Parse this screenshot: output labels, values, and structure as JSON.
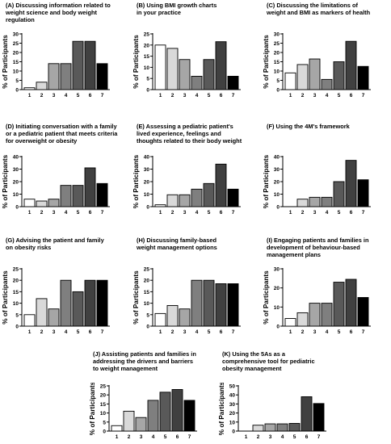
{
  "chart_data": [
    {
      "id": "A",
      "type": "bar",
      "title_lines": [
        "(A) Discussing information related to",
        "weight science and body weight",
        "regulation"
      ],
      "categories": [
        "1",
        "2",
        "3",
        "4",
        "5",
        "6",
        "7"
      ],
      "values": [
        1,
        4,
        14,
        14,
        26,
        26,
        14
      ],
      "ylabel": "% of Participants",
      "yticks": [
        0,
        5,
        10,
        15,
        20,
        25,
        30
      ],
      "ylim": [
        0,
        30
      ]
    },
    {
      "id": "B",
      "type": "bar",
      "title_lines": [
        "(B) Using BMI growth charts",
        "in your practice"
      ],
      "categories": [
        "1",
        "2",
        "3",
        "4",
        "5",
        "6",
        "7"
      ],
      "values": [
        20,
        18.5,
        13.5,
        6,
        13.5,
        21.5,
        6
      ],
      "ylabel": "% of Participants",
      "yticks": [
        0,
        5,
        10,
        15,
        20,
        25
      ],
      "ylim": [
        0,
        25
      ]
    },
    {
      "id": "C",
      "type": "bar",
      "title_lines": [
        "(C) Discussing the limitations of",
        "weight and BMI as markers of health"
      ],
      "categories": [
        "1",
        "2",
        "3",
        "4",
        "5",
        "6",
        "7"
      ],
      "values": [
        9,
        13.5,
        16.5,
        5.5,
        15,
        26,
        12.5
      ],
      "ylabel": "% of Participants",
      "yticks": [
        0,
        5,
        10,
        15,
        20,
        25,
        30
      ],
      "ylim": [
        0,
        30
      ]
    },
    {
      "id": "D",
      "type": "bar",
      "title_lines": [
        "(D) Initiating conversation with a family",
        "or a pediatric patient that meets criteria",
        "for overweight or obesity"
      ],
      "categories": [
        "1",
        "2",
        "3",
        "4",
        "5",
        "6",
        "7"
      ],
      "values": [
        6,
        4.5,
        6,
        17,
        17,
        31,
        18.5
      ],
      "ylabel": "% of Participants",
      "yticks": [
        0,
        10,
        20,
        30,
        40
      ],
      "ylim": [
        0,
        40
      ]
    },
    {
      "id": "E",
      "type": "bar",
      "title_lines": [
        "(E) Assessing a pediatric patient's",
        "lived experience, feelings and",
        "thoughts related to their body weight"
      ],
      "categories": [
        "1",
        "2",
        "3",
        "4",
        "5",
        "6",
        "7"
      ],
      "values": [
        1.5,
        9.5,
        9.5,
        14,
        18.5,
        34,
        14
      ],
      "ylabel": "% of Participants",
      "yticks": [
        0,
        10,
        20,
        30,
        40
      ],
      "ylim": [
        0,
        40
      ]
    },
    {
      "id": "F",
      "type": "bar",
      "title_lines": [
        "(F) Using the 4M's framework"
      ],
      "categories": [
        "1",
        "2",
        "3",
        "4",
        "5",
        "6",
        "7"
      ],
      "values": [
        0,
        6,
        7.5,
        7.5,
        20,
        37,
        21.5
      ],
      "ylabel": "% of Participants",
      "yticks": [
        0,
        10,
        20,
        30,
        40
      ],
      "ylim": [
        0,
        40
      ]
    },
    {
      "id": "G",
      "type": "bar",
      "title_lines": [
        "(G) Advising the patient and family",
        "on obesity risks"
      ],
      "categories": [
        "1",
        "2",
        "3",
        "4",
        "5",
        "6",
        "7"
      ],
      "values": [
        5,
        12,
        7.5,
        20,
        15,
        20,
        20
      ],
      "ylabel": "% of Participants",
      "yticks": [
        0,
        5,
        10,
        15,
        20,
        25
      ],
      "ylim": [
        0,
        25
      ]
    },
    {
      "id": "H",
      "type": "bar",
      "title_lines": [
        "(H) Discussing family-based",
        "weight management options"
      ],
      "categories": [
        "1",
        "2",
        "3",
        "4",
        "5",
        "6",
        "7"
      ],
      "values": [
        5.5,
        9,
        7.5,
        20,
        20,
        18.5,
        18.5
      ],
      "ylabel": "% of Participants",
      "yticks": [
        0,
        5,
        10,
        15,
        20,
        25
      ],
      "ylim": [
        0,
        25
      ]
    },
    {
      "id": "I",
      "type": "bar",
      "title_lines": [
        "(I) Engaging patients and families in",
        "development of behaviour-based",
        "management plans"
      ],
      "categories": [
        "1",
        "2",
        "3",
        "4",
        "5",
        "6",
        "7"
      ],
      "values": [
        4,
        7,
        12,
        12,
        23,
        24.5,
        15
      ],
      "ylabel": "% of Participants",
      "yticks": [
        0,
        10,
        20,
        30
      ],
      "ylim": [
        0,
        30
      ]
    },
    {
      "id": "J",
      "type": "bar",
      "title_lines": [
        "(J) Assisting patients and families in",
        "addressing the drivers and barriers",
        "to weight management"
      ],
      "categories": [
        "1",
        "2",
        "3",
        "4",
        "5",
        "6",
        "7"
      ],
      "values": [
        3,
        11,
        7.5,
        17,
        21.5,
        23,
        17
      ],
      "ylabel": "% of Participants",
      "yticks": [
        0,
        5,
        10,
        15,
        20,
        25
      ],
      "ylim": [
        0,
        25
      ]
    },
    {
      "id": "K",
      "type": "bar",
      "title_lines": [
        "(K) Using the 5As as a",
        "comprehensive tool for pediatric",
        "obesity management"
      ],
      "categories": [
        "1",
        "2",
        "3",
        "4",
        "5",
        "6",
        "7"
      ],
      "values": [
        0,
        6.5,
        8,
        8,
        8.5,
        38,
        30.5
      ],
      "ylabel": "% of Participants",
      "yticks": [
        0,
        10,
        20,
        30,
        40,
        50
      ],
      "ylim": [
        0,
        50
      ]
    }
  ],
  "bar_colors": [
    "#ffffff",
    "#d9d9d9",
    "#a6a6a6",
    "#7f7f7f",
    "#595959",
    "#404040",
    "#000000"
  ]
}
